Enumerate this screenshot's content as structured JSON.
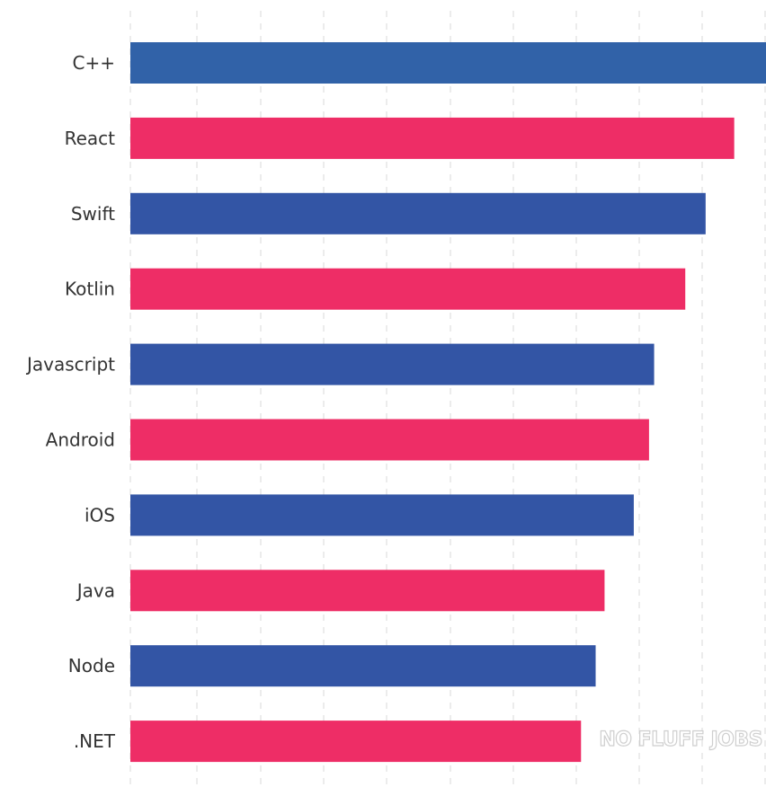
{
  "chart_data": {
    "type": "bar",
    "orientation": "horizontal",
    "title": "",
    "xlabel": "",
    "ylabel": "",
    "categories": [
      "C++",
      "React",
      "Swift",
      "Kotlin",
      "Javascript",
      "Android",
      "iOS",
      "Java",
      "Node",
      ".NET"
    ],
    "values": [
      100,
      95,
      90.5,
      87.3,
      82.4,
      81.6,
      79.2,
      74.6,
      73.2,
      70.9
    ],
    "xlim": [
      0,
      100
    ],
    "grid": "vertical-dashed",
    "legend": "none",
    "colors": {
      "blue": "#3355a5",
      "pink": "#ee2d66"
    },
    "bar_colors": [
      "#3162a8",
      "#ee2d66",
      "#3355a5",
      "#ee2d66",
      "#3355a5",
      "#ee2d66",
      "#3355a5",
      "#ee2d66",
      "#3355a5",
      "#ee2d66"
    ]
  },
  "watermark": "NO FLUFF JOBS"
}
